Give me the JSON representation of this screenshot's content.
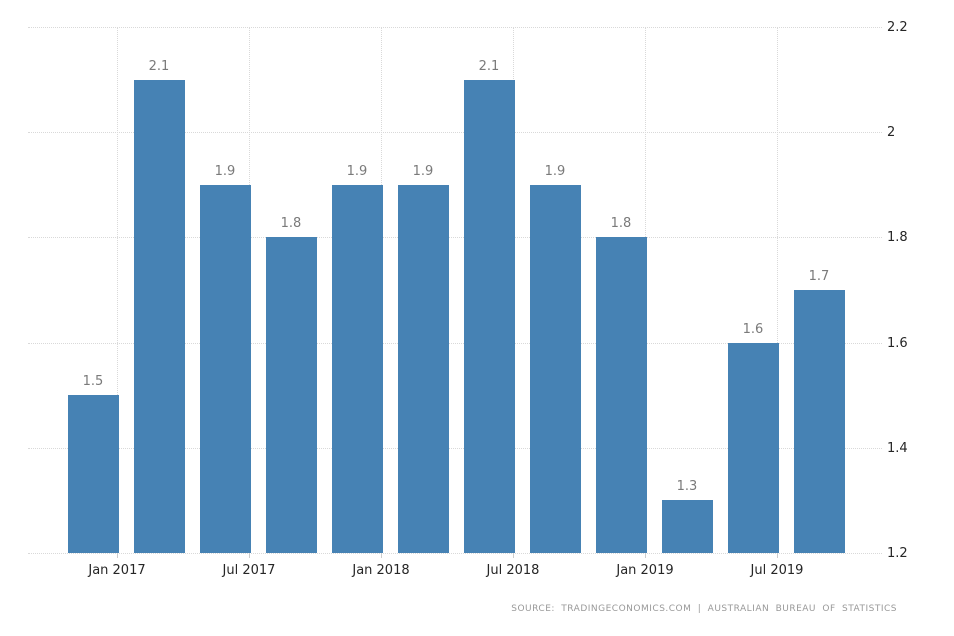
{
  "chart_data": {
    "type": "bar",
    "title": "",
    "values": [
      1.5,
      2.1,
      1.9,
      1.8,
      1.9,
      1.9,
      2.1,
      1.9,
      1.8,
      1.3,
      1.6,
      1.7
    ],
    "value_labels": [
      "1.5",
      "2.1",
      "1.9",
      "1.8",
      "1.9",
      "1.9",
      "2.1",
      "1.9",
      "1.8",
      "1.3",
      "1.6",
      "1.7"
    ],
    "x_axis": {
      "tick_labels": [
        "Jan 2017",
        "Jul 2017",
        "Jan 2018",
        "Jul 2018",
        "Jan 2019",
        "Jul 2019"
      ]
    },
    "y_axis": {
      "position": "right",
      "tick_labels": [
        "2.2",
        "2",
        "1.8",
        "1.6",
        "1.4",
        "1.2"
      ],
      "tick_values": [
        2.2,
        2.0,
        1.8,
        1.6,
        1.4,
        1.2
      ]
    },
    "ylim": [
      1.2,
      2.2
    ],
    "grid": "dotted",
    "legend": "none"
  },
  "source": {
    "label": "SOURCE: TRADINGECONOMICS.COM | AUSTRALIAN BUREAU OF STATISTICS"
  },
  "colors": {
    "bar": "#4682b4",
    "grid": "#d9d9d9",
    "tick_mark": "#cccccc",
    "axis_label": "#262626",
    "value_label": "#7a7a7a",
    "source_text": "#999999",
    "background": "#ffffff"
  }
}
